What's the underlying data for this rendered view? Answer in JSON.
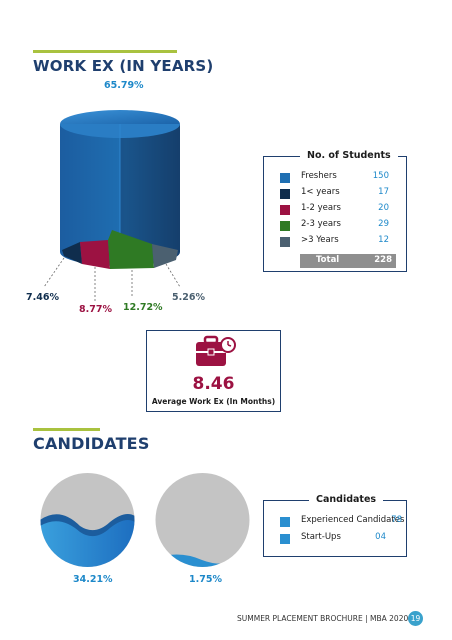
{
  "workex": {
    "title": "WORK EX (IN YEARS)",
    "pct_freshers": "65.79%",
    "pct_less1": "7.46%",
    "pct_1to2": "8.77%",
    "pct_2to3": "12.72%",
    "pct_gt3": "5.26%",
    "legend": {
      "title": "No. of Students",
      "items": [
        {
          "label": "Freshers",
          "value": "150",
          "color": "#1f6fb2"
        },
        {
          "label": "1< years",
          "value": "17",
          "color": "#0f2d4d"
        },
        {
          "label": "1-2 years",
          "value": "20",
          "color": "#9c1242"
        },
        {
          "label": "2-3 years",
          "value": "29",
          "color": "#2f7a24"
        },
        {
          "label": ">3 Years",
          "value": "12",
          "color": "#4b6070"
        }
      ],
      "total_label": "Total",
      "total_value": "228"
    }
  },
  "avg": {
    "value": "8.46",
    "label": "Average Work Ex (In Months)"
  },
  "candidates": {
    "title": "CANDIDATES",
    "pct_experienced": "34.21%",
    "pct_startups": "1.75%",
    "legend": {
      "title": "Candidates",
      "items": [
        {
          "label": "Experienced Candidates",
          "value": "78",
          "color": "#2a8fd0"
        },
        {
          "label": "Start-Ups",
          "value": "04",
          "color": "#2a8fd0"
        }
      ]
    }
  },
  "footer": {
    "text": "SUMMER PLACEMENT BROCHURE | MBA 2020-22",
    "page": "19"
  },
  "colors": {
    "navy": "#1f3f6e",
    "accent": "#a9c23f",
    "blue": "#1d88c9",
    "crimson": "#9c1242",
    "green": "#2f7a24"
  },
  "chart_data": [
    {
      "type": "pie",
      "title": "WORK EX (IN YEARS)",
      "categories": [
        "Freshers",
        "1< years",
        "1-2 years",
        "2-3 years",
        ">3 Years"
      ],
      "values": [
        150,
        17,
        20,
        29,
        12
      ],
      "percent_labels": [
        "65.79%",
        "7.46%",
        "8.77%",
        "12.72%",
        "5.26%"
      ]
    }
  ]
}
